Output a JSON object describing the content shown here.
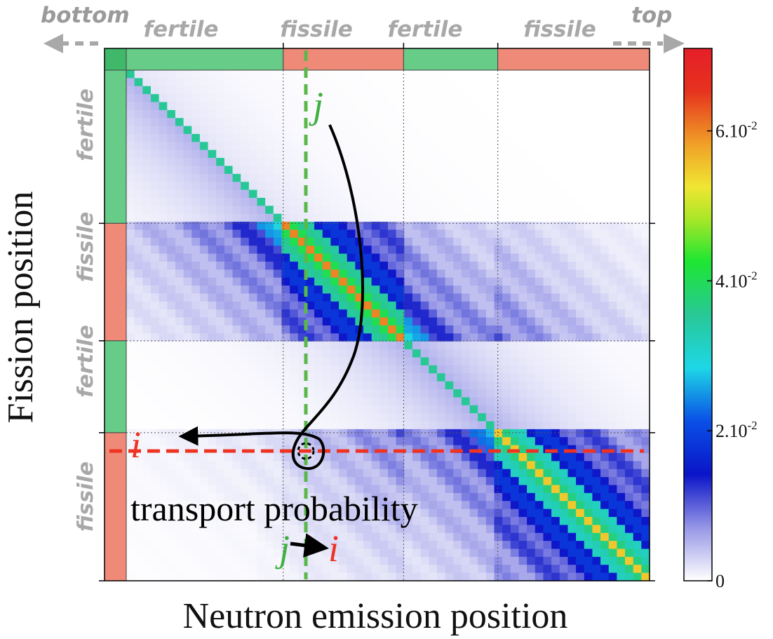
{
  "chart_data": {
    "type": "heatmap",
    "xlabel": "Neutron emission position",
    "ylabel": "Fission position",
    "direction_labels": {
      "left": "bottom",
      "right": "top"
    },
    "zones": [
      "fertile",
      "fissile",
      "fertile",
      "fissile"
    ],
    "zone_boundaries": [
      0,
      0.3,
      0.53,
      0.71,
      1.0
    ],
    "zone_colors": {
      "fertile": "#66cc88",
      "fissile": "#f08a78"
    },
    "grid_size": 64,
    "colorbar": {
      "ticks": [
        {
          "value": 0,
          "label": "0"
        },
        {
          "value": 0.02,
          "label": "2.10",
          "exp": "-2"
        },
        {
          "value": 0.04,
          "label": "4.10",
          "exp": "-2"
        },
        {
          "value": 0.06,
          "label": "6.10",
          "exp": "-2"
        }
      ],
      "vmin": 0,
      "vmax": 0.071
    },
    "annotations": {
      "transport_label": "transport probability",
      "source_symbol": "j",
      "target_symbol": "i",
      "source_fraction": 0.375,
      "target_fraction": 0.73
    }
  }
}
